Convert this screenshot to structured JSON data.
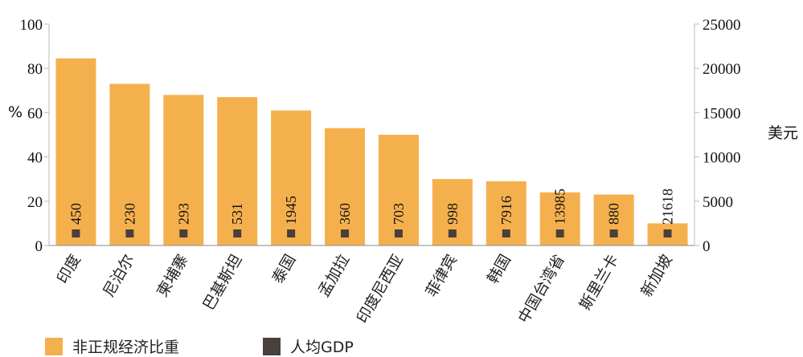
{
  "chart_data": {
    "type": "bar",
    "categories": [
      "印度",
      "尼泊尔",
      "柬埔寨",
      "巴基斯坦",
      "泰国",
      "孟加拉",
      "印度尼西亚",
      "菲律宾",
      "韩国",
      "中国台湾省",
      "斯里兰卡",
      "新加坡"
    ],
    "series": [
      {
        "name": "非正规经济比重",
        "axis": "left",
        "type": "bar",
        "color": "#F5B04E",
        "values": [
          84.5,
          73,
          68,
          67,
          61,
          53,
          50,
          30,
          29,
          24,
          23,
          10
        ]
      },
      {
        "name": "人均GDP",
        "axis": "right",
        "type": "marker",
        "color": "#4A3F3A",
        "values": [
          450,
          230,
          293,
          531,
          1945,
          360,
          703,
          998,
          7916,
          13985,
          880,
          21618
        ],
        "labels": [
          "450",
          "230",
          "293",
          "531",
          "1945",
          "360",
          "703",
          "998",
          "7916",
          "13985",
          "880",
          "21618"
        ]
      }
    ],
    "ylabel_left": "%",
    "ylabel_right": "美元",
    "ylim_left": [
      0,
      100
    ],
    "ylim_right": [
      0,
      25000
    ],
    "yticks_left": [
      "0",
      "20",
      "40",
      "60",
      "80",
      "100"
    ],
    "yticks_right": [
      "0",
      "5000",
      "10000",
      "15000",
      "20000",
      "25000"
    ],
    "grid": false,
    "legend_position": "bottom-left"
  }
}
